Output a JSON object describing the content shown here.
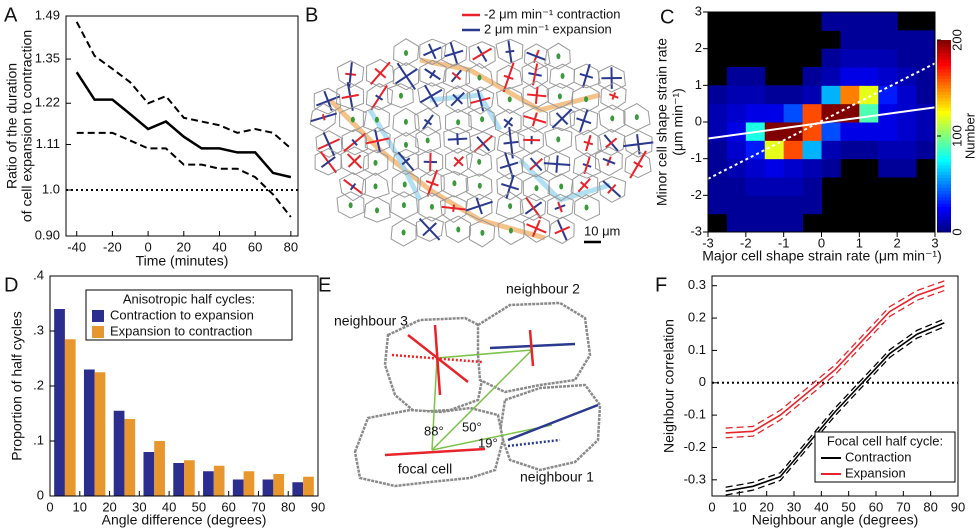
{
  "chart_data": [
    {
      "type": "line",
      "label": "A",
      "xlabel": "Time (minutes)",
      "ylabel": [
        "Ratio of the duration",
        "of cell expansion to contraction"
      ],
      "x": [
        -40,
        -30,
        -20,
        -10,
        0,
        10,
        20,
        30,
        40,
        50,
        60,
        70,
        80
      ],
      "xlim": [
        -46,
        84
      ],
      "xticks": [
        -40,
        -20,
        0,
        20,
        40,
        60,
        80
      ],
      "ylim": [
        0.9,
        1.49
      ],
      "log_y": true,
      "yticks": [
        {
          "value": 0.9,
          "label": "0.90"
        },
        {
          "value": 1,
          "label": "1.0"
        },
        1.11,
        1.22,
        1.35,
        1.49
      ],
      "reference_line": 1,
      "series": [
        {
          "color": "#000000",
          "values": [
            1.31,
            1.23,
            1.23,
            1.19,
            1.15,
            1.17,
            1.13,
            1.1,
            1.1,
            1.09,
            1.09,
            1.04,
            1.03
          ],
          "upper": [
            1.47,
            1.36,
            1.32,
            1.28,
            1.22,
            1.24,
            1.18,
            1.17,
            1.16,
            1.14,
            1.15,
            1.14,
            1.1
          ],
          "lower": [
            1.14,
            1.14,
            1.14,
            1.12,
            1.1,
            1.1,
            1.06,
            1.06,
            1.05,
            1.05,
            1.03,
            0.99,
            0.94
          ]
        }
      ]
    },
    {
      "type": "image",
      "label": "B",
      "legend": [
        {
          "name": "-2 μm min⁻¹ contraction",
          "color": "#e8232a"
        },
        {
          "name": "2 μm min⁻¹ expansion",
          "color": "#2b3a8f"
        }
      ],
      "scale_bar": "10 μm"
    },
    {
      "type": "heatmap",
      "label": "C",
      "xlabel": "Major cell shape strain rate (μm min⁻¹)",
      "ylabel": [
        "Minor cell shape strain rate",
        "(μm min⁻¹)"
      ],
      "xlim": [
        -3,
        3
      ],
      "ylim": [
        -3,
        3
      ],
      "xticks": [
        -3,
        -2,
        -1,
        0,
        1,
        2,
        3
      ],
      "yticks": [
        -3,
        -2,
        -1,
        0,
        1,
        2,
        3
      ],
      "colormap": "jet",
      "values": [
        [
          null,
          5,
          5,
          5,
          5,
          null,
          null,
          null,
          null,
          null,
          null,
          null
        ],
        [
          5,
          5,
          5,
          5,
          5,
          5,
          null,
          null,
          null,
          null,
          null,
          null
        ],
        [
          5,
          5,
          10,
          10,
          10,
          5,
          null,
          null,
          null,
          null,
          null,
          null
        ],
        [
          5,
          10,
          15,
          20,
          15,
          10,
          5,
          null,
          null,
          5,
          5,
          null
        ],
        [
          5,
          15,
          30,
          120,
          160,
          60,
          10,
          5,
          5,
          10,
          10,
          5
        ],
        [
          10,
          20,
          80,
          200,
          200,
          160,
          40,
          20,
          20,
          20,
          15,
          10
        ],
        [
          10,
          15,
          20,
          20,
          40,
          160,
          200,
          200,
          90,
          20,
          15,
          10
        ],
        [
          5,
          10,
          10,
          5,
          5,
          10,
          60,
          150,
          120,
          30,
          15,
          5
        ],
        [
          null,
          5,
          5,
          null,
          null,
          5,
          10,
          20,
          20,
          15,
          10,
          5
        ],
        [
          null,
          null,
          null,
          null,
          null,
          null,
          5,
          10,
          10,
          10,
          5,
          5
        ],
        [
          null,
          null,
          null,
          null,
          null,
          null,
          null,
          5,
          5,
          5,
          5,
          5
        ],
        [
          null,
          null,
          null,
          null,
          null,
          null,
          5,
          5,
          5,
          5,
          null,
          null
        ]
      ],
      "lines": [
        {
          "style": "solid",
          "color": "#ffffff",
          "x": [
            -3,
            3
          ],
          "y": [
            -0.45,
            0.4
          ]
        },
        {
          "style": "dotted",
          "color": "#ffffff",
          "x": [
            -3,
            3
          ],
          "y": [
            -1.55,
            1.6
          ]
        }
      ],
      "colorbar": {
        "label": "Number",
        "lim": [
          0,
          200
        ],
        "ticks": [
          0,
          100,
          200
        ]
      }
    },
    {
      "type": "bar",
      "label": "D",
      "xlabel": "Angle difference (degrees)",
      "ylabel": "Proportion of half cycles",
      "x": [
        5,
        15,
        25,
        35,
        45,
        55,
        65,
        75,
        85
      ],
      "xlim": [
        0,
        90
      ],
      "xticks": [
        0,
        10,
        20,
        30,
        40,
        50,
        60,
        70,
        80,
        90
      ],
      "ylim": [
        0,
        0.4
      ],
      "yticks": [
        0,
        {
          "value": 0.1,
          "label": ".1"
        },
        {
          "value": 0.2,
          "label": ".2"
        },
        {
          "value": 0.3,
          "label": ".3"
        },
        {
          "value": 0.4,
          "label": ".4"
        }
      ],
      "legend_title": "Anisotropic half cycles:",
      "series": [
        {
          "name": "Contraction to expansion",
          "color": "#2b2d8f",
          "values": [
            0.34,
            0.23,
            0.155,
            0.08,
            0.06,
            0.045,
            0.03,
            0.03,
            0.025
          ]
        },
        {
          "name": "Expansion to contraction",
          "color": "#e8962e",
          "values": [
            0.285,
            0.225,
            0.14,
            0.1,
            0.065,
            0.055,
            0.045,
            0.04,
            0.035
          ]
        }
      ]
    },
    {
      "type": "diagram",
      "label": "E",
      "nodes": [
        "neighbour 3",
        "neighbour 2",
        "neighbour 1",
        "focal cell"
      ],
      "angles": [
        "88°",
        "50°",
        "19°"
      ]
    },
    {
      "type": "line",
      "label": "F",
      "xlabel": "Neighbour angle (degrees)",
      "ylabel": "Neighbour correlation",
      "x": [
        5,
        15,
        25,
        35,
        45,
        55,
        65,
        75,
        85
      ],
      "xlim": [
        0,
        90
      ],
      "xticks": [
        0,
        10,
        20,
        30,
        40,
        50,
        60,
        70,
        80,
        90
      ],
      "ylim": [
        -0.35,
        0.33
      ],
      "yticks": [
        -0.3,
        -0.2,
        -0.1,
        0,
        0.1,
        0.2,
        0.3
      ],
      "reference_line": 0,
      "legend_title": "Focal cell half cycle:",
      "series": [
        {
          "name": "Contraction",
          "color": "#000000",
          "values": [
            -0.335,
            -0.32,
            -0.29,
            -0.19,
            -0.09,
            0.0,
            0.09,
            0.15,
            0.185
          ],
          "upper": [
            -0.323,
            -0.308,
            -0.278,
            -0.178,
            -0.078,
            0.012,
            0.102,
            0.162,
            0.197
          ],
          "lower": [
            -0.347,
            -0.332,
            -0.302,
            -0.202,
            -0.102,
            -0.012,
            0.078,
            0.138,
            0.173
          ]
        },
        {
          "name": "Expansion",
          "color": "#e8232a",
          "values": [
            -0.155,
            -0.15,
            -0.1,
            -0.03,
            0.04,
            0.13,
            0.22,
            0.27,
            0.3
          ],
          "upper": [
            -0.14,
            -0.135,
            -0.085,
            -0.015,
            0.055,
            0.145,
            0.235,
            0.285,
            0.315
          ],
          "lower": [
            -0.17,
            -0.165,
            -0.115,
            -0.045,
            0.025,
            0.115,
            0.205,
            0.255,
            0.285
          ]
        }
      ]
    }
  ]
}
